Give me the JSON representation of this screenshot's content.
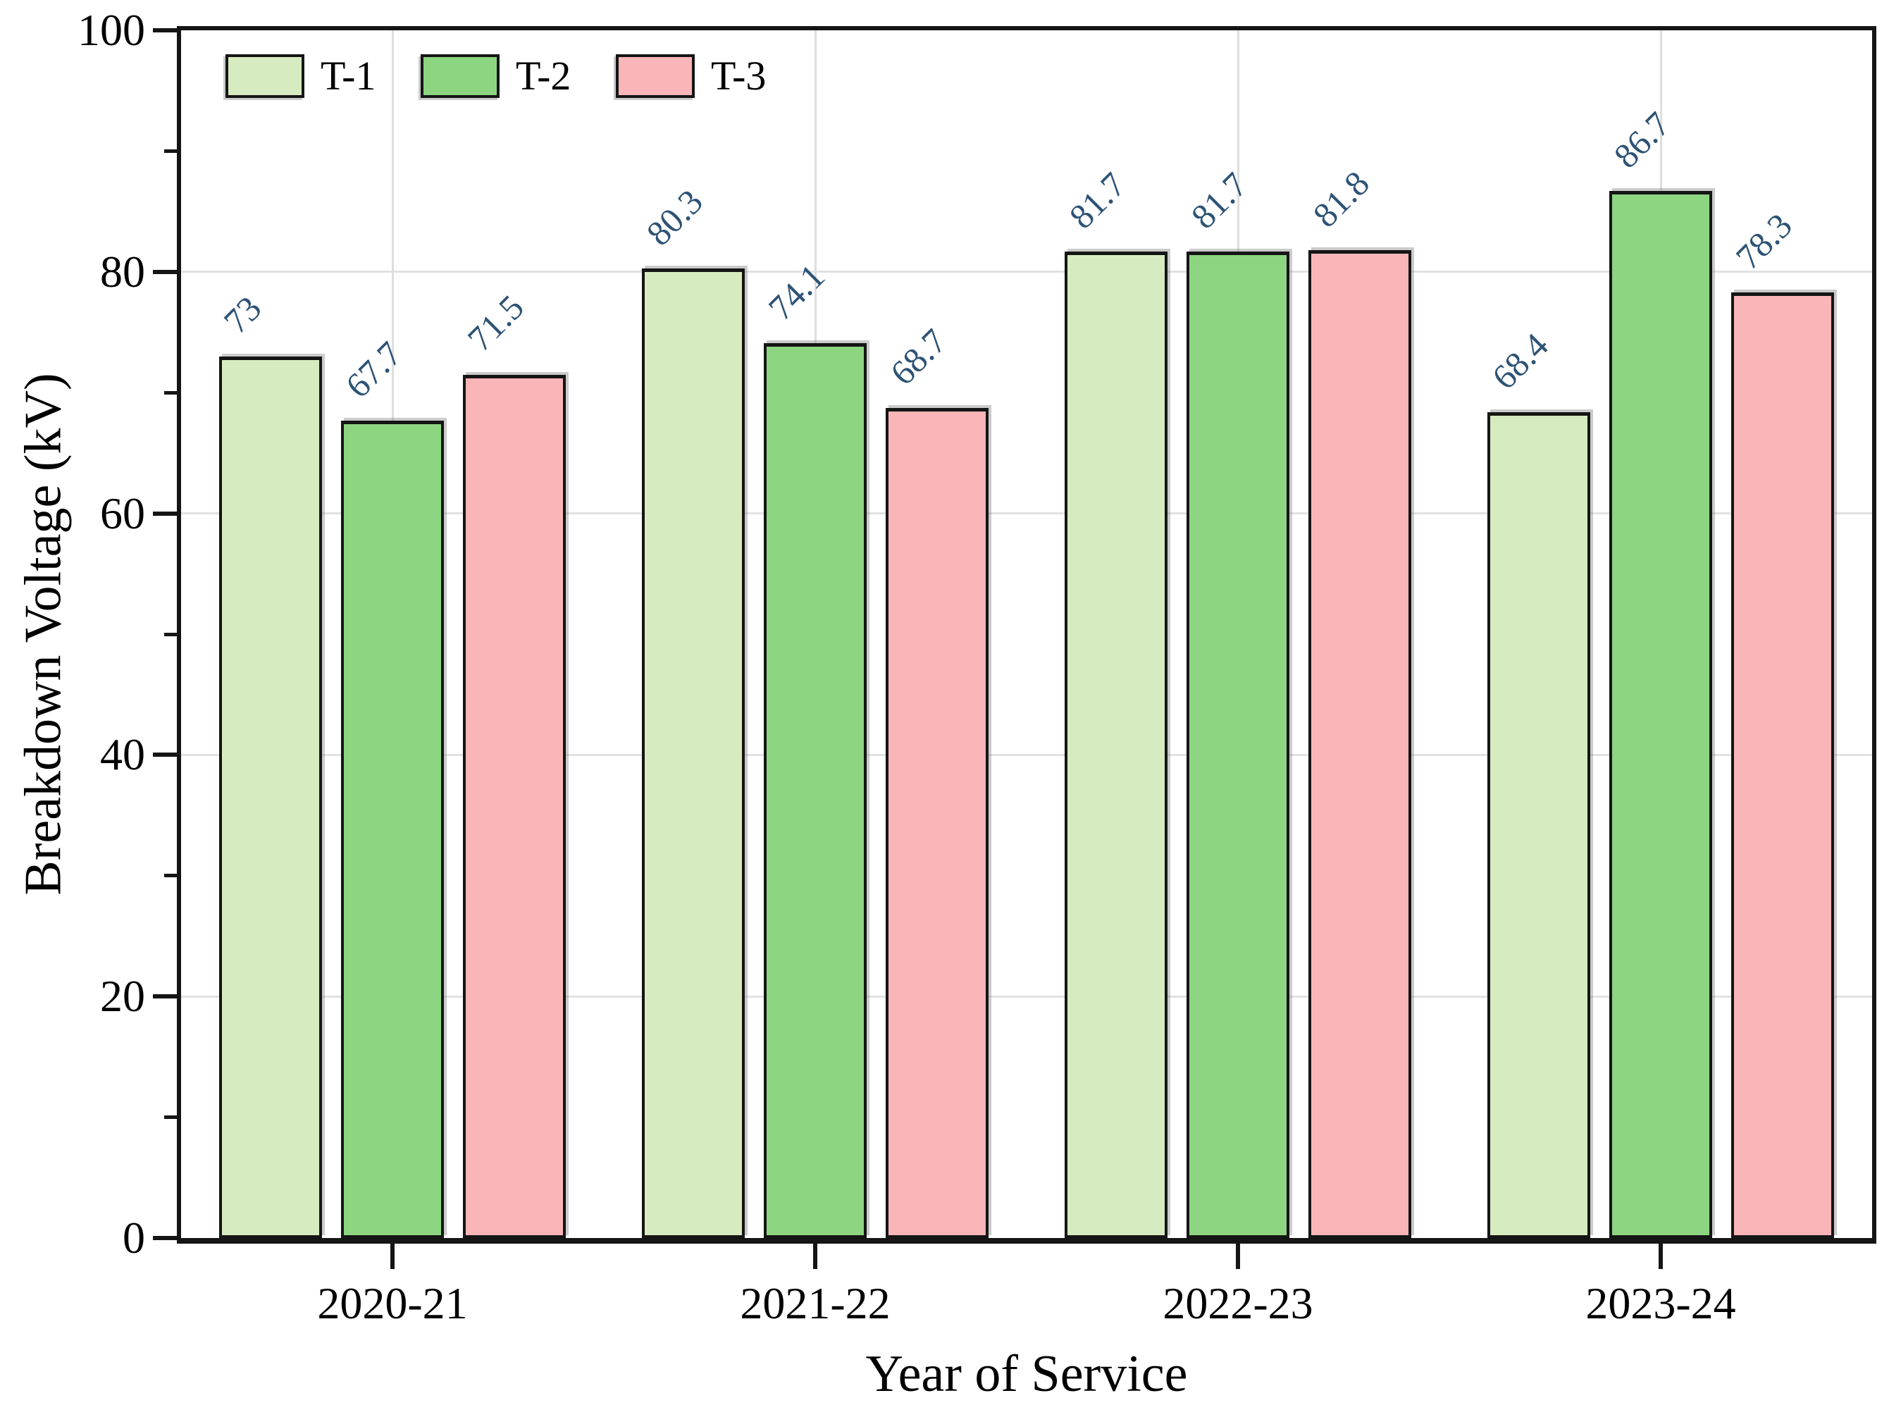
{
  "axes": {
    "x_title": "Year of Service",
    "y_title": "Breakdown Voltage (kV)"
  },
  "legend": {
    "position": "top-left-inside",
    "items": [
      {
        "label": "T-1",
        "color": "#d6ebbf"
      },
      {
        "label": "T-2",
        "color": "#8dd581"
      },
      {
        "label": "T-3",
        "color": "#f9b5b8"
      }
    ]
  },
  "chart_data": {
    "type": "bar",
    "title": "",
    "categories": [
      "2020-21",
      "2021-22",
      "2022-23",
      "2023-24"
    ],
    "series": [
      {
        "name": "T-1",
        "color": "#d6ebbf",
        "values": [
          73,
          80.3,
          81.7,
          68.4
        ]
      },
      {
        "name": "T-2",
        "color": "#8dd581",
        "values": [
          67.7,
          74.1,
          81.7,
          86.7
        ]
      },
      {
        "name": "T-3",
        "color": "#f9b5b8",
        "values": [
          71.5,
          68.7,
          81.8,
          78.3
        ]
      }
    ],
    "xlabel": "Year of Service",
    "ylabel": "Breakdown Voltage (kV)",
    "ylim": [
      0,
      100
    ],
    "y_major_ticks": [
      0,
      20,
      40,
      60,
      80,
      100
    ],
    "y_minor_ticks": [
      10,
      30,
      50,
      70,
      90
    ],
    "grid": {
      "horizontal_at": [
        20,
        40,
        60,
        80
      ],
      "vertical_at_category_centers": true
    },
    "legend_position": "top-left inside plot",
    "value_label_color": "#2d5375",
    "bar_border_color": "#151515",
    "gridline_color": "#e2e2e2"
  }
}
